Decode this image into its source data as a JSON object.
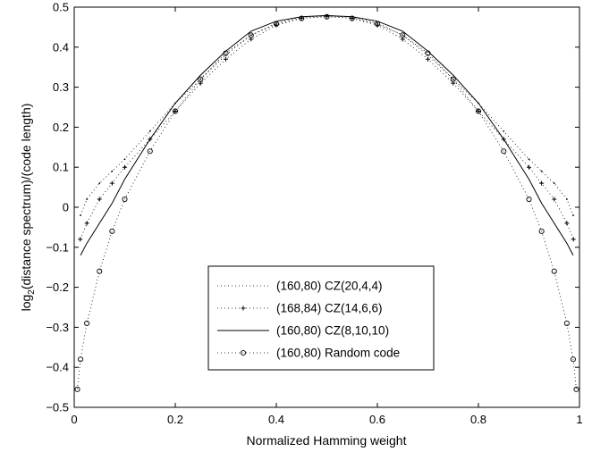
{
  "chart_data": {
    "type": "line",
    "title": "",
    "xlabel": "Normalized Hamming weight",
    "ylabel_main": "log",
    "ylabel_sub": "2",
    "ylabel_rest": "(distance spectrum)/(code length)",
    "xlim": [
      0,
      1
    ],
    "ylim": [
      -0.5,
      0.5
    ],
    "xticks": [
      "0",
      "0.2",
      "0.4",
      "0.6",
      "0.8",
      "1"
    ],
    "yticks": [
      "−0.5",
      "−0.4",
      "−0.3",
      "−0.2",
      "−0.1",
      "0",
      "0.1",
      "0.2",
      "0.3",
      "0.4",
      "0.5"
    ],
    "grid": false,
    "legend_position": "bottom-center",
    "series": [
      {
        "name": "(160,80) CZ(20,4,4)",
        "marker": "dot",
        "x": [
          0.0125,
          0.025,
          0.05,
          0.075,
          0.1,
          0.15,
          0.2,
          0.25,
          0.3,
          0.35,
          0.4,
          0.45,
          0.5,
          0.55,
          0.6,
          0.65,
          0.7,
          0.75,
          0.8,
          0.85,
          0.9,
          0.925,
          0.95,
          0.975,
          0.9875
        ],
        "y": [
          -0.02,
          0.02,
          0.06,
          0.09,
          0.12,
          0.19,
          0.26,
          0.32,
          0.38,
          0.43,
          0.46,
          0.475,
          0.478,
          0.475,
          0.46,
          0.43,
          0.38,
          0.32,
          0.26,
          0.19,
          0.12,
          0.09,
          0.06,
          0.02,
          -0.02
        ]
      },
      {
        "name": "(168,84) CZ(14,6,6)",
        "marker": "plus",
        "x": [
          0.0119,
          0.025,
          0.05,
          0.075,
          0.1,
          0.15,
          0.2,
          0.25,
          0.3,
          0.35,
          0.4,
          0.45,
          0.5,
          0.55,
          0.6,
          0.65,
          0.7,
          0.75,
          0.8,
          0.85,
          0.9,
          0.925,
          0.95,
          0.975,
          0.988
        ],
        "y": [
          -0.08,
          -0.04,
          0.02,
          0.06,
          0.1,
          0.17,
          0.24,
          0.31,
          0.37,
          0.42,
          0.455,
          0.472,
          0.477,
          0.472,
          0.455,
          0.42,
          0.37,
          0.31,
          0.24,
          0.17,
          0.1,
          0.06,
          0.02,
          -0.04,
          -0.08
        ]
      },
      {
        "name": "(160,80) CZ(8,10,10)",
        "marker": "solid",
        "x": [
          0.0125,
          0.025,
          0.05,
          0.075,
          0.1,
          0.15,
          0.2,
          0.25,
          0.3,
          0.35,
          0.4,
          0.45,
          0.5,
          0.55,
          0.6,
          0.65,
          0.7,
          0.75,
          0.8,
          0.85,
          0.9,
          0.925,
          0.95,
          0.975,
          0.9875
        ],
        "y": [
          -0.12,
          -0.09,
          -0.04,
          0.01,
          0.07,
          0.17,
          0.26,
          0.33,
          0.39,
          0.44,
          0.465,
          0.476,
          0.479,
          0.476,
          0.465,
          0.44,
          0.39,
          0.33,
          0.26,
          0.17,
          0.07,
          0.01,
          -0.04,
          -0.09,
          -0.12
        ]
      },
      {
        "name": "(160,80) Random code",
        "marker": "circle",
        "x": [
          0.00625,
          0.0125,
          0.025,
          0.05,
          0.075,
          0.1,
          0.15,
          0.2,
          0.25,
          0.3,
          0.35,
          0.4,
          0.45,
          0.5,
          0.55,
          0.6,
          0.65,
          0.7,
          0.75,
          0.8,
          0.85,
          0.9,
          0.925,
          0.95,
          0.975,
          0.9875,
          0.99375
        ],
        "y": [
          -0.455,
          -0.38,
          -0.29,
          -0.16,
          -0.06,
          0.02,
          0.14,
          0.24,
          0.32,
          0.385,
          0.43,
          0.458,
          0.472,
          0.476,
          0.472,
          0.458,
          0.43,
          0.385,
          0.32,
          0.24,
          0.14,
          0.02,
          -0.06,
          -0.16,
          -0.29,
          -0.38,
          -0.455
        ]
      }
    ]
  }
}
